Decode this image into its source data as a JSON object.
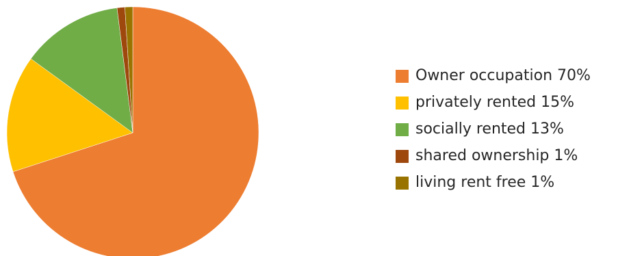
{
  "chart_data": {
    "type": "pie",
    "title": "",
    "legend_position": "right",
    "start_angle_deg": 0,
    "direction": "clockwise",
    "slices": [
      {
        "label": "Owner occupation 70%",
        "value": 70,
        "color": "#ED7D31"
      },
      {
        "label": "privately rented 15%",
        "value": 15,
        "color": "#FFC000"
      },
      {
        "label": "socially rented 13%",
        "value": 13,
        "color": "#70AD47"
      },
      {
        "label": "shared ownership 1%",
        "value": 1,
        "color": "#9E480E"
      },
      {
        "label": "living rent free 1%",
        "value": 1,
        "color": "#997300"
      }
    ]
  }
}
